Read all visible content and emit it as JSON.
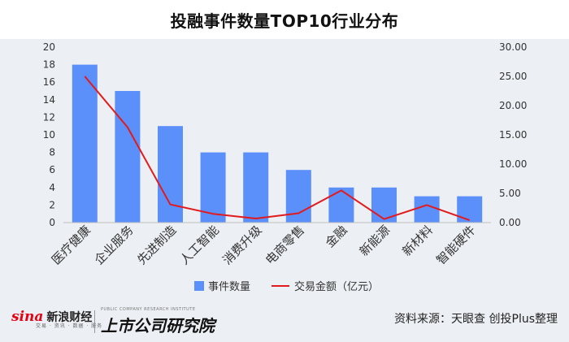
{
  "title": "投融事件数量TOP10行业分布",
  "chart_data": {
    "type": "bar+line",
    "categories": [
      "医疗健康",
      "企业服务",
      "先进制造",
      "人工智能",
      "消费升级",
      "电商零售",
      "金融",
      "新能源",
      "新材料",
      "智能硬件"
    ],
    "series": [
      {
        "name": "事件数量",
        "type": "bar",
        "axis": "left",
        "values": [
          18,
          15,
          11,
          8,
          8,
          6,
          4,
          4,
          3,
          3
        ]
      },
      {
        "name": "交易金额（亿元）",
        "type": "line",
        "axis": "right",
        "values": [
          25.0,
          16.3,
          3.1,
          1.5,
          0.7,
          1.6,
          5.5,
          0.6,
          3.0,
          0.4
        ]
      }
    ],
    "left_axis": {
      "ylim": [
        0,
        20
      ],
      "ticks": [
        "0",
        "2",
        "4",
        "6",
        "8",
        "10",
        "12",
        "14",
        "16",
        "18",
        "20"
      ]
    },
    "right_axis": {
      "ylim": [
        0,
        30
      ],
      "ticks": [
        "0.00",
        "5.00",
        "10.00",
        "15.00",
        "20.00",
        "25.00",
        "30.00"
      ]
    },
    "colors": {
      "bar": "#5b8ff9",
      "line": "#e31a1c"
    },
    "grid": false,
    "legend": "bottom"
  },
  "footer": {
    "sina_logo": "sina",
    "sina_name": "新浪财经",
    "sina_sub": "交易 · 资讯 · 数据 · 服务",
    "research_small": "PUBLIC COMPANY RESEARCH INSTITUTE",
    "research_main": "上市公司研究院",
    "source": "资料来源：天眼查 创投Plus整理"
  }
}
